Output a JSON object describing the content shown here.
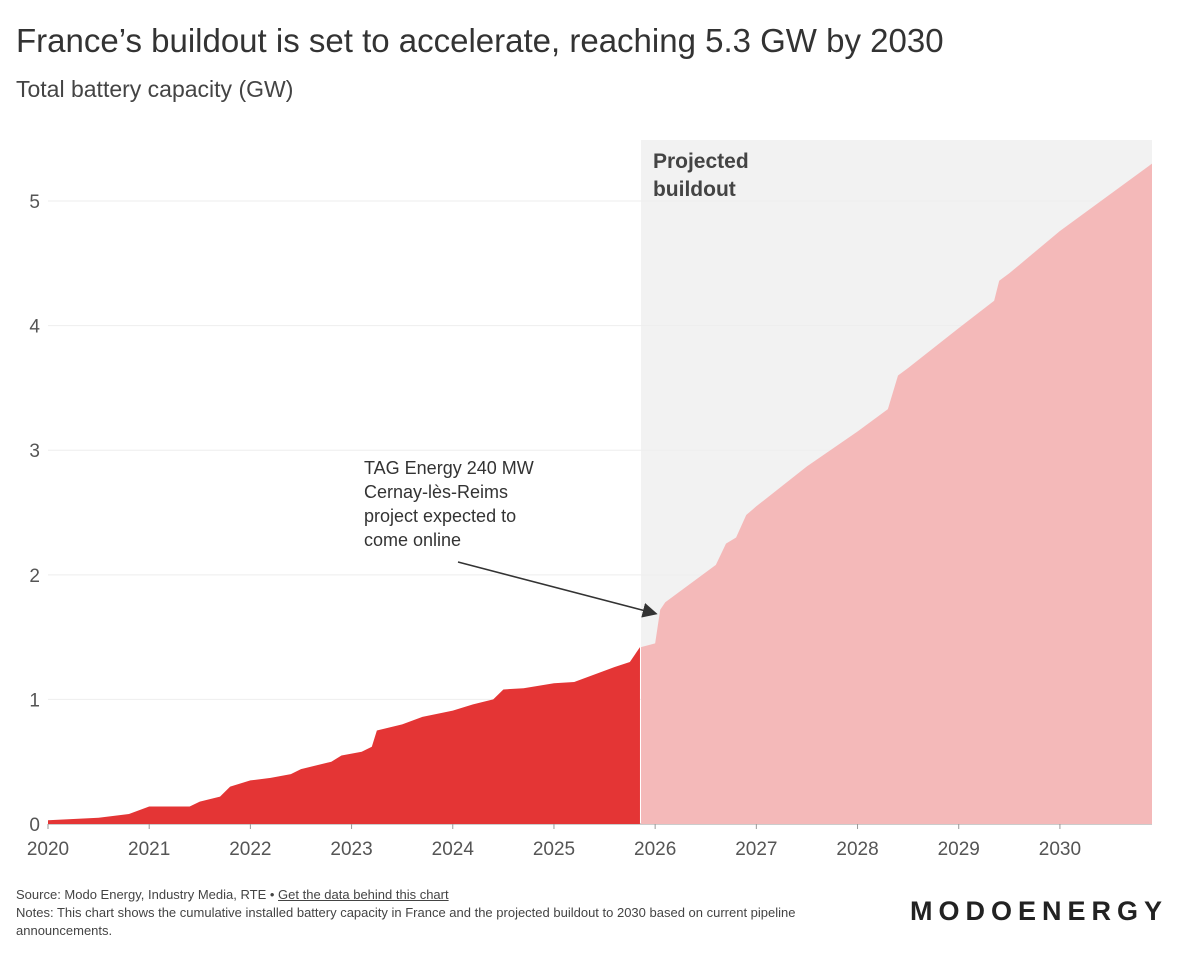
{
  "chart_data": {
    "type": "area",
    "title": "France’s buildout is set to accelerate, reaching 5.3 GW by 2030",
    "subtitle": "Total battery capacity (GW)",
    "xlim": [
      2020,
      2030.91
    ],
    "ylim": [
      0,
      5.49
    ],
    "xticks": [
      2020,
      2021,
      2022,
      2023,
      2024,
      2025,
      2026,
      2027,
      2028,
      2029,
      2030
    ],
    "yticks": [
      0,
      1,
      2,
      3,
      4,
      5
    ],
    "grid": true,
    "series": [
      {
        "color": "#e43535",
        "x": [
          2020,
          2020.5,
          2020.8,
          2021,
          2021.4,
          2021.5,
          2021.7,
          2021.8,
          2022,
          2022.2,
          2022.4,
          2022.5,
          2022.8,
          2022.9,
          2023.1,
          2023.2,
          2023.25,
          2023.5,
          2023.7,
          2024,
          2024.2,
          2024.4,
          2024.5,
          2024.7,
          2025,
          2025.2,
          2025.4,
          2025.6,
          2025.75,
          2025.85
        ],
        "values": [
          0.03,
          0.05,
          0.08,
          0.14,
          0.14,
          0.18,
          0.22,
          0.3,
          0.35,
          0.37,
          0.4,
          0.44,
          0.5,
          0.55,
          0.58,
          0.62,
          0.75,
          0.8,
          0.86,
          0.91,
          0.96,
          1.0,
          1.08,
          1.09,
          1.13,
          1.14,
          1.2,
          1.26,
          1.3,
          1.42
        ]
      },
      {
        "name": "Projected buildout",
        "color": "#f4b9b9",
        "x": [
          2025.86,
          2026,
          2026.05,
          2026.1,
          2026.6,
          2026.7,
          2026.8,
          2026.9,
          2027,
          2027.5,
          2028,
          2028.3,
          2028.4,
          2028.5,
          2029,
          2029.35,
          2029.4,
          2029.5,
          2030,
          2030.91
        ],
        "values": [
          1.42,
          1.45,
          1.72,
          1.78,
          2.08,
          2.25,
          2.3,
          2.48,
          2.55,
          2.87,
          3.15,
          3.33,
          3.6,
          3.66,
          3.98,
          4.2,
          4.36,
          4.42,
          4.76,
          5.3
        ]
      }
    ],
    "annotation": "TAG Energy 240 MW\nCernay-lès-Reims\nproject expected to\ncome online",
    "source": "Source: Modo Energy, Industry Media, RTE •",
    "source_link": "Get the data behind this chart",
    "notes": "Notes: This chart shows the cumulative installed battery capacity in France and the projected buildout to 2030 based on current pipeline announcements.",
    "logo": "MODOENERGY"
  }
}
